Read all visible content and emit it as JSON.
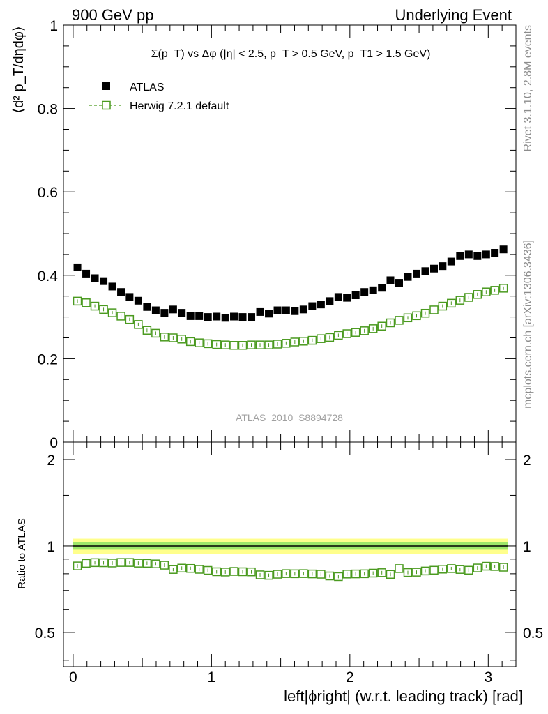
{
  "header": {
    "left": "900 GeV pp",
    "right": "Underlying Event"
  },
  "side_text": {
    "rivet": "Rivet 3.1.10,  2.8M events",
    "mcplots": "mcplots.cern.ch [arXiv:1306.3436]"
  },
  "watermark": "ATLAS_2010_S8894728",
  "chart_data": [
    {
      "type": "scatter",
      "title": "Σ(p_T) vs Δφ (|η| < 2.5, p_T > 0.5 GeV, p_T1 > 1.5 GeV)",
      "ylabel": "⟨d² p_T/dηdφ⟩",
      "xlim": [
        -0.07,
        3.2
      ],
      "ylim": [
        0,
        1
      ],
      "yticks": [
        0,
        0.2,
        0.4,
        0.6,
        0.8,
        1
      ],
      "ytick_labels": [
        "0",
        "0.2",
        "0.4",
        "0.6",
        "0.8",
        "1"
      ],
      "legend_position": "top-left",
      "legend": [
        {
          "name": "ATLAS",
          "marker": "filled-square",
          "color": "#000000"
        },
        {
          "name": "Herwig 7.2.1 default",
          "marker": "open-square-dashed",
          "color": "#4a9a1f"
        }
      ],
      "x": [
        0.031,
        0.094,
        0.157,
        0.22,
        0.283,
        0.346,
        0.408,
        0.471,
        0.534,
        0.597,
        0.66,
        0.723,
        0.785,
        0.848,
        0.911,
        0.974,
        1.037,
        1.1,
        1.162,
        1.225,
        1.288,
        1.351,
        1.414,
        1.477,
        1.539,
        1.602,
        1.665,
        1.728,
        1.791,
        1.854,
        1.917,
        1.979,
        2.042,
        2.105,
        2.168,
        2.231,
        2.293,
        2.356,
        2.419,
        2.482,
        2.545,
        2.608,
        2.67,
        2.733,
        2.796,
        2.859,
        2.922,
        2.985,
        3.047,
        3.11
      ],
      "series": [
        {
          "name": "ATLAS",
          "values": [
            0.419,
            0.404,
            0.393,
            0.386,
            0.373,
            0.36,
            0.348,
            0.339,
            0.324,
            0.316,
            0.31,
            0.318,
            0.31,
            0.302,
            0.302,
            0.3,
            0.301,
            0.298,
            0.301,
            0.3,
            0.3,
            0.312,
            0.308,
            0.316,
            0.316,
            0.314,
            0.318,
            0.326,
            0.33,
            0.338,
            0.348,
            0.346,
            0.352,
            0.36,
            0.364,
            0.37,
            0.388,
            0.382,
            0.396,
            0.404,
            0.41,
            0.416,
            0.422,
            0.433,
            0.446,
            0.45,
            0.446,
            0.45,
            0.454,
            0.462
          ]
        },
        {
          "name": "Herwig 7.2.1 default",
          "values": [
            0.338,
            0.334,
            0.326,
            0.318,
            0.31,
            0.302,
            0.294,
            0.282,
            0.268,
            0.261,
            0.252,
            0.25,
            0.247,
            0.241,
            0.238,
            0.236,
            0.234,
            0.233,
            0.232,
            0.232,
            0.233,
            0.233,
            0.233,
            0.235,
            0.237,
            0.24,
            0.242,
            0.244,
            0.248,
            0.251,
            0.256,
            0.26,
            0.263,
            0.267,
            0.272,
            0.278,
            0.286,
            0.292,
            0.298,
            0.303,
            0.309,
            0.317,
            0.326,
            0.333,
            0.34,
            0.347,
            0.354,
            0.36,
            0.364,
            0.369
          ]
        }
      ]
    },
    {
      "type": "scatter",
      "ylabel": "Ratio to ATLAS",
      "xlabel": "left|ϕright| (w.r.t. leading track) [rad]",
      "xlim": [
        -0.07,
        3.2
      ],
      "ylim": [
        0.38,
        2.3
      ],
      "xticks": [
        0,
        1,
        2,
        3
      ],
      "xtick_labels": [
        "0",
        "1",
        "2",
        "3"
      ],
      "yticks": [
        0.5,
        1,
        2
      ],
      "ytick_labels": [
        "0.5",
        "1",
        "2"
      ],
      "reference_line": 1,
      "bands": [
        {
          "name": "outer",
          "lower": 0.94,
          "upper": 1.06,
          "color": "#ffff8c"
        },
        {
          "name": "inner",
          "lower": 0.97,
          "upper": 1.03,
          "color": "#9ee76a"
        }
      ],
      "series": [
        {
          "name": "Herwig 7.2.1 default",
          "values": [
            0.852,
            0.87,
            0.875,
            0.874,
            0.872,
            0.876,
            0.876,
            0.871,
            0.87,
            0.866,
            0.857,
            0.828,
            0.837,
            0.835,
            0.829,
            0.822,
            0.813,
            0.811,
            0.815,
            0.813,
            0.812,
            0.793,
            0.79,
            0.797,
            0.801,
            0.8,
            0.801,
            0.799,
            0.797,
            0.786,
            0.782,
            0.798,
            0.799,
            0.8,
            0.804,
            0.807,
            0.796,
            0.834,
            0.808,
            0.81,
            0.818,
            0.823,
            0.83,
            0.834,
            0.828,
            0.823,
            0.838,
            0.85,
            0.848,
            0.843
          ]
        }
      ]
    }
  ]
}
